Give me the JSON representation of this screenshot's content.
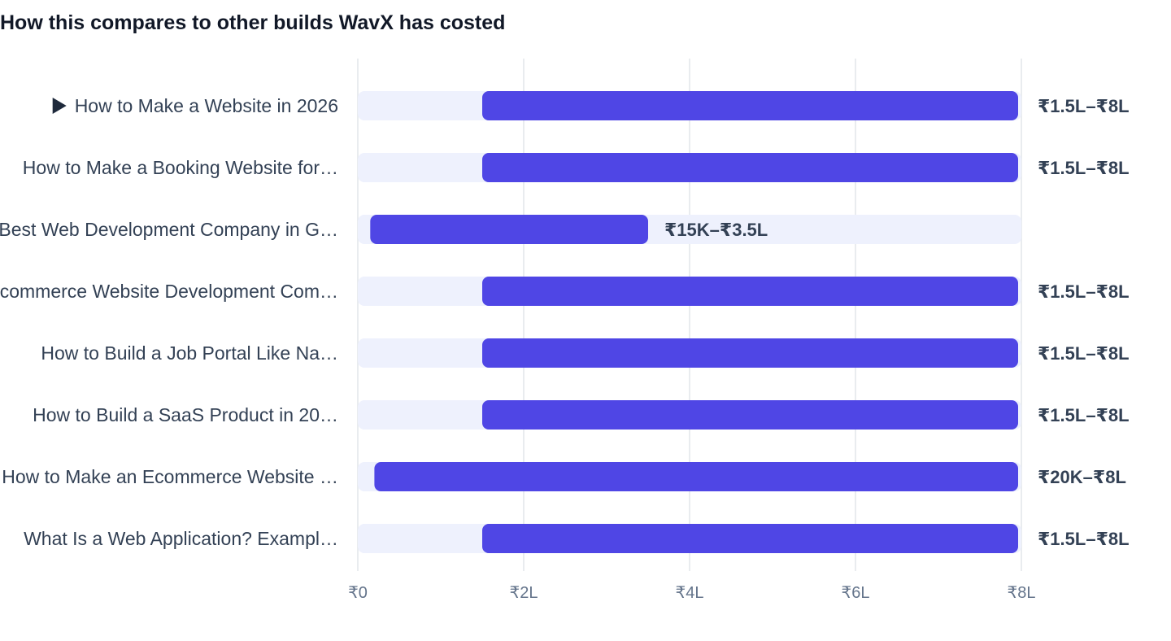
{
  "page": {
    "title": "How this compares to other builds WavX has costed"
  },
  "chart_data": {
    "type": "bar",
    "orientation": "horizontal",
    "subtype": "range",
    "title": "How this compares to other builds WavX has costed",
    "xlabel": "",
    "ylabel": "",
    "xlim": [
      0,
      8
    ],
    "x_unit": "lakh INR",
    "x_ticks": [
      {
        "value": 0,
        "label": "₹0"
      },
      {
        "value": 2,
        "label": "₹2L"
      },
      {
        "value": 4,
        "label": "₹4L"
      },
      {
        "value": 6,
        "label": "₹6L"
      },
      {
        "value": 8,
        "label": "₹8L"
      }
    ],
    "grid": true,
    "legend": "none",
    "colors": {
      "bar": "#4f46e5",
      "track": "#eef1fd",
      "grid": "#e2e5ea",
      "label": "#334155",
      "tick": "#64748b"
    },
    "expanded_row_icon": "play-triangle-icon",
    "rows": [
      {
        "label": "How to Make a Website in 2026",
        "low": 1.5,
        "high": 8,
        "value_label": "₹1.5L–₹8L",
        "has_marker": true
      },
      {
        "label": "How to Make a Booking Website for…",
        "low": 1.5,
        "high": 8,
        "value_label": "₹1.5L–₹8L"
      },
      {
        "label": "Best Web Development Company in G…",
        "low": 0.15,
        "high": 3.5,
        "value_label": "₹15K–₹3.5L"
      },
      {
        "label": "Ecommerce Website Development Com…",
        "low": 1.5,
        "high": 8,
        "value_label": "₹1.5L–₹8L"
      },
      {
        "label": "How to Build a Job Portal Like Na…",
        "low": 1.5,
        "high": 8,
        "value_label": "₹1.5L–₹8L"
      },
      {
        "label": "How to Build a SaaS Product in 20…",
        "low": 1.5,
        "high": 8,
        "value_label": "₹1.5L–₹8L"
      },
      {
        "label": "How to Make an Ecommerce Website …",
        "low": 0.2,
        "high": 8,
        "value_label": "₹20K–₹8L"
      },
      {
        "label": "What Is a Web Application? Exampl…",
        "low": 1.5,
        "high": 8,
        "value_label": "₹1.5L–₹8L"
      }
    ]
  }
}
